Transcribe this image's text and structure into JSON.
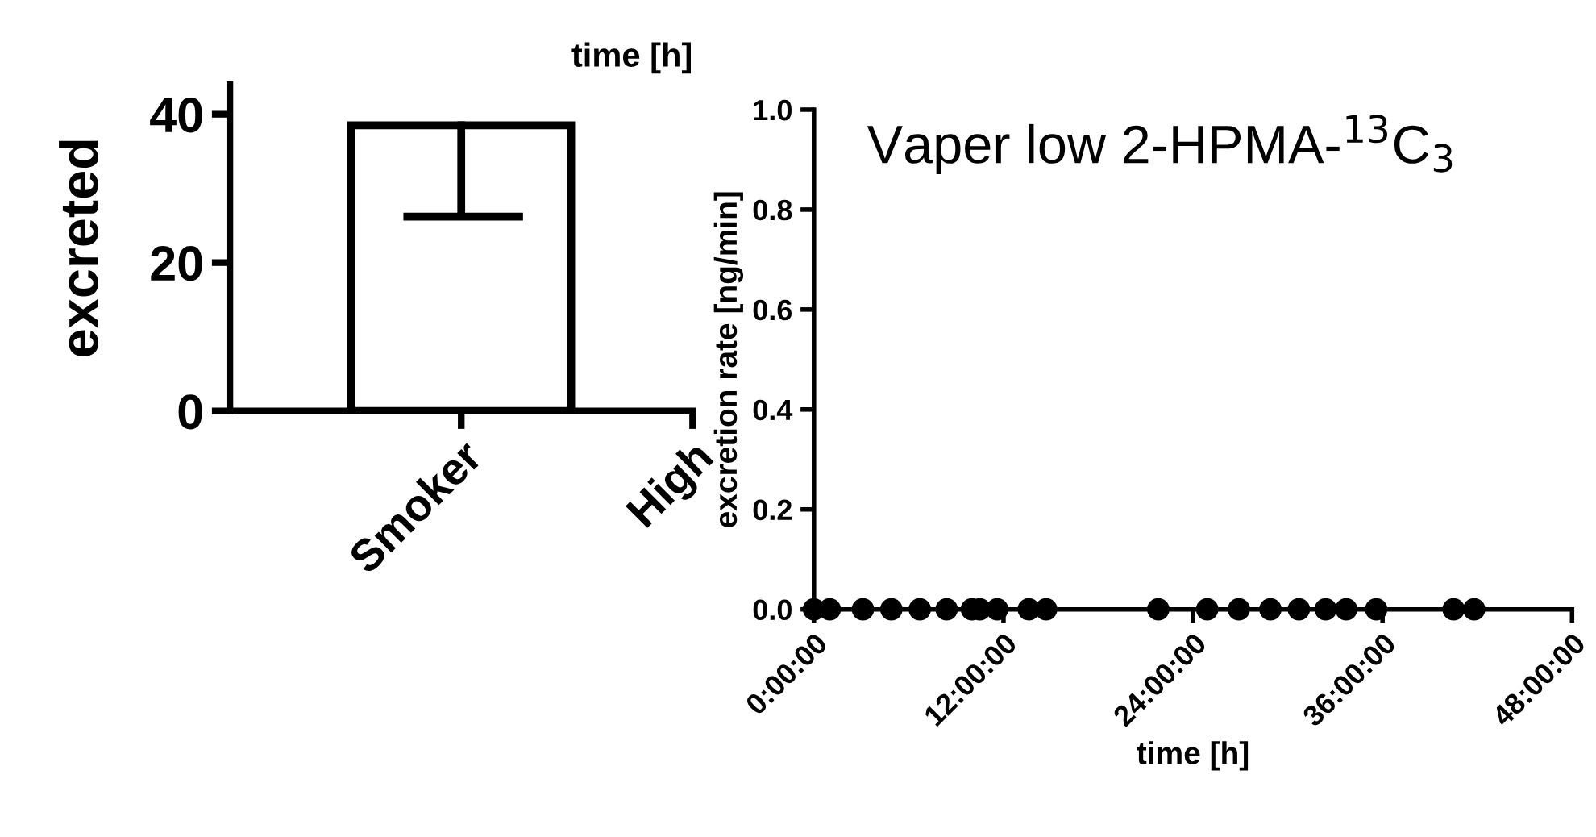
{
  "chart_data": [
    {
      "type": "bar",
      "title": "time [h]",
      "ylabel": "excreted",
      "categories": [
        "Smoker",
        "High"
      ],
      "values": [
        38.5,
        null
      ],
      "errors": [
        [
          26.2,
          38.5
        ],
        null
      ],
      "color": "#ffffff",
      "ylim": [
        0,
        44
      ],
      "yticks": [
        0,
        20,
        40
      ],
      "grid": false,
      "legend": false
    },
    {
      "type": "scatter",
      "title": "Vaper low 2-HPMA-$^{13}$C$_{3}$",
      "xlabel": "time [h]",
      "ylabel": "excretion rate [ng/min]",
      "series": [
        {
          "color": "#000000",
          "x": [
            0,
            1.0,
            3.1,
            4.9,
            6.7,
            8.4,
            10.0,
            10.5,
            11.6,
            13.6,
            14.7,
            21.8,
            24.9,
            26.9,
            28.9,
            30.7,
            32.4,
            33.7,
            35.6,
            40.5,
            41.8
          ],
          "values": [
            0,
            0,
            0,
            0,
            0,
            0,
            0,
            0,
            0,
            0,
            0,
            0,
            0,
            0,
            0,
            0,
            0,
            0,
            0,
            0,
            0
          ]
        }
      ],
      "xlim": [
        0,
        48
      ],
      "xticks": [
        {
          "value": 0,
          "label": "0:00:00"
        },
        {
          "value": 12,
          "label": "12:00:00"
        },
        {
          "value": 24,
          "label": "24:00:00"
        },
        {
          "value": 36,
          "label": "36:00:00"
        },
        {
          "value": 48,
          "label": "48:00:00"
        }
      ],
      "ylim": [
        0,
        1.0
      ],
      "yticks": [
        {
          "value": 0,
          "label": "0.0"
        },
        {
          "value": 0.2,
          "label": "0.2"
        },
        {
          "value": 0.4,
          "label": "0.4"
        },
        {
          "value": 0.6,
          "label": "0.6"
        },
        {
          "value": 0.8,
          "label": "0.8"
        },
        {
          "value": 1.0,
          "label": "1.0"
        }
      ],
      "marker": "circle",
      "grid": false,
      "legend": false
    }
  ]
}
